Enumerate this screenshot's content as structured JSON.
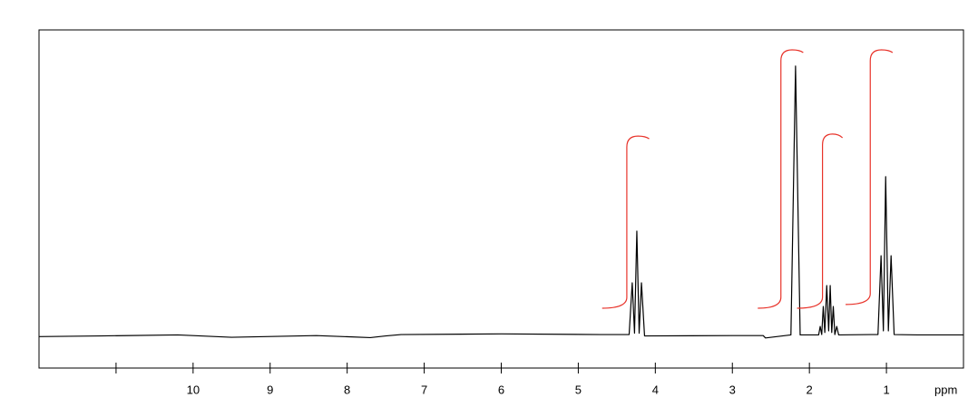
{
  "chart_data": {
    "type": "line",
    "x_label": "ppm",
    "xlim": [
      12,
      0
    ],
    "ylim": [
      0,
      100
    ],
    "xticks": [
      10,
      9,
      8,
      7,
      6,
      5,
      4,
      3,
      2,
      1
    ],
    "minor_xticks": [
      11
    ],
    "series": [
      {
        "color": "#000000",
        "x": [
          12,
          11.2,
          10.2,
          9.5,
          8.4,
          7.7,
          7.5,
          7.3,
          6,
          4.7,
          4.34,
          4.3,
          4.27,
          4.24,
          4.21,
          4.18,
          4.14,
          3.0,
          2.6,
          2.57,
          2.24,
          2.18,
          2.12,
          1.88,
          1.86,
          1.84,
          1.82,
          1.8,
          1.775,
          1.75,
          1.73,
          1.71,
          1.69,
          1.67,
          1.645,
          1.62,
          1.6,
          1.2,
          1.11,
          1.07,
          1.04,
          1.01,
          0.975,
          0.94,
          0.9,
          0.6,
          0
        ],
        "values": [
          9.3,
          9.5,
          9.8,
          9.1,
          9.6,
          9.0,
          9.5,
          9.9,
          10.1,
          9.9,
          9.9,
          25.2,
          10.3,
          40.5,
          10.3,
          25.2,
          9.5,
          9.6,
          9.6,
          8.9,
          9.8,
          89.3,
          9.8,
          9.8,
          12.3,
          9.9,
          18.2,
          10.5,
          24.4,
          11,
          24.4,
          10.5,
          18.2,
          9.9,
          12.3,
          9.8,
          9.8,
          9.9,
          9.9,
          33.2,
          11,
          56.6,
          11,
          33.2,
          9.9,
          9.8,
          9.8
        ]
      }
    ],
    "integrals": {
      "color": "#e8332a",
      "curves": [
        {
          "x": [
            4.69,
            4.37,
            4.08
          ],
          "values": [
            17.7,
            68.6,
            67.8
          ]
        },
        {
          "x": [
            2.67,
            2.37,
            2.08
          ],
          "values": [
            17.7,
            94.1,
            93.3
          ]
        },
        {
          "x": [
            2.16,
            1.83,
            1.57
          ],
          "values": [
            17.7,
            69.2,
            68.1
          ]
        },
        {
          "x": [
            1.53,
            1.21,
            0.92
          ],
          "values": [
            18.8,
            94.1,
            93.3
          ]
        }
      ]
    }
  }
}
